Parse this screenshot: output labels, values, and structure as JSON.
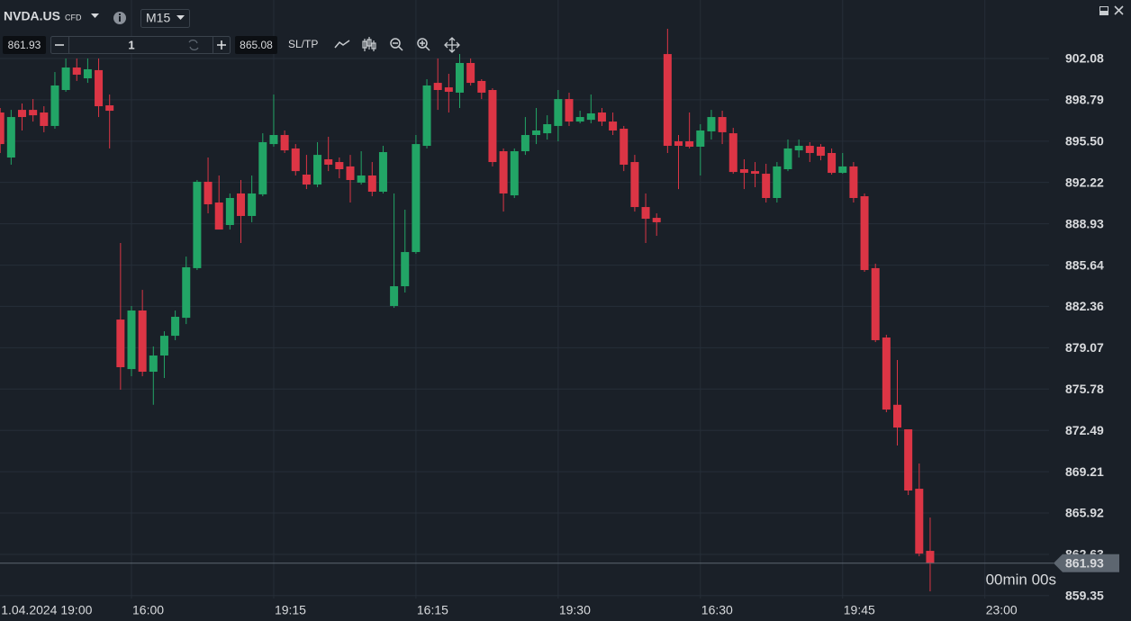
{
  "toolbar": {
    "symbol": "NVDA.US",
    "instrument_type": "CFD",
    "timeframe": "M15",
    "sell_price": 861.93,
    "volume": 1,
    "buy_price": 865.08,
    "sltp": "SL/TP"
  },
  "chart_data": {
    "type": "candlestick",
    "categories": [
      "1.04.2024 19:00",
      null,
      null,
      null,
      null,
      null,
      null,
      null,
      null,
      null,
      null,
      null,
      "16:00",
      null,
      null,
      null,
      null,
      null,
      null,
      null,
      null,
      null,
      null,
      null,
      null,
      "19:15",
      null,
      null,
      null,
      null,
      null,
      null,
      null,
      null,
      null,
      null,
      null,
      null,
      "16:15",
      null,
      null,
      null,
      null,
      null,
      null,
      null,
      null,
      null,
      null,
      null,
      null,
      "19:30",
      null,
      null,
      null,
      null,
      null,
      null,
      null,
      null,
      null,
      null,
      null,
      null,
      "16:30",
      null,
      null,
      null,
      null,
      null,
      null,
      null,
      null,
      null,
      null,
      null,
      null,
      "19:45",
      null,
      null,
      null,
      null,
      null,
      null,
      null,
      null,
      null,
      null,
      null,
      null,
      "23:00",
      null,
      null,
      null,
      null,
      null
    ],
    "open": [
      897.78,
      894.2,
      897.99,
      897.99,
      897.78,
      896.71,
      899.57,
      901.36,
      900.5,
      901.15,
      898.35,
      881.31,
      877.37,
      882.03,
      877.16,
      878.45,
      880.02,
      881.45,
      885.4,
      892.27,
      890.62,
      888.83,
      891.34,
      889.55,
      891.27,
      895.27,
      895.99,
      894.92,
      892.84,
      892.05,
      894.06,
      893.84,
      893.49,
      892.2,
      892.77,
      891.48,
      882.39,
      883.96,
      886.68,
      895.13,
      900.14,
      899.78,
      899.36,
      901.72,
      900.29,
      899.57,
      894.7,
      891.19,
      894.7,
      895.99,
      896.13,
      896.71,
      898.85,
      897.06,
      897.2,
      897.78,
      897.06,
      896.49,
      893.84,
      890.26,
      889.4,
      902.43,
      895.49,
      895.49,
      895.06,
      896.28,
      897.42,
      896.13,
      893.27,
      893.12,
      892.91,
      890.98,
      893.27,
      894.77,
      895.13,
      895.06,
      894.56,
      892.98,
      893.49,
      891.12,
      885.4,
      879.88,
      874.53,
      872.58,
      867.85,
      862.91,
      null,
      null,
      null,
      null,
      null,
      null,
      null,
      null,
      null,
      null
    ],
    "high": [
      898.14,
      897.99,
      898.5,
      898.85,
      898.28,
      901.0,
      902.08,
      902.08,
      902.08,
      902.08,
      899.21,
      887.4,
      882.39,
      883.67,
      879.17,
      880.38,
      882.03,
      886.32,
      892.41,
      894.2,
      892.77,
      891.34,
      892.41,
      892.77,
      896.13,
      899.21,
      896.35,
      895.27,
      894.41,
      895.42,
      895.85,
      894.2,
      894.41,
      894.7,
      893.84,
      895.13,
      891.34,
      890.05,
      895.99,
      900.43,
      902.08,
      900.86,
      902.43,
      902.08,
      900.43,
      899.71,
      894.92,
      894.92,
      897.42,
      898.14,
      897.56,
      899.57,
      899.36,
      897.92,
      899.21,
      898.14,
      897.78,
      896.71,
      894.41,
      891.34,
      889.76,
      904.44,
      895.99,
      897.78,
      896.85,
      897.99,
      897.92,
      896.56,
      894.06,
      893.84,
      893.7,
      893.84,
      895.63,
      895.63,
      895.42,
      895.27,
      894.92,
      894.56,
      893.84,
      891.34,
      885.75,
      880.1,
      878.09,
      872.58,
      869.86,
      865.56,
      null,
      null,
      null,
      null,
      null,
      null,
      null,
      null,
      null,
      null
    ],
    "low": [
      894.56,
      893.63,
      896.35,
      897.06,
      896.21,
      896.49,
      899.43,
      900.29,
      900.14,
      897.42,
      894.92,
      875.73,
      876.8,
      876.8,
      874.53,
      876.66,
      879.67,
      880.95,
      885.25,
      889.76,
      888.47,
      888.47,
      887.4,
      889.05,
      891.12,
      895.06,
      894.56,
      892.77,
      891.69,
      891.84,
      893.12,
      892.55,
      890.62,
      892.05,
      891.12,
      891.34,
      882.24,
      883.46,
      886.54,
      894.92,
      897.99,
      897.78,
      898.14,
      899.93,
      898.85,
      893.49,
      889.9,
      890.98,
      894.41,
      895.27,
      895.63,
      895.49,
      896.71,
      896.92,
      896.92,
      896.71,
      895.99,
      893.12,
      889.9,
      887.4,
      887.97,
      894.56,
      891.69,
      894.92,
      892.77,
      895.63,
      895.27,
      892.91,
      891.69,
      891.84,
      890.62,
      890.62,
      893.12,
      894.2,
      893.84,
      893.98,
      892.84,
      892.91,
      890.62,
      885.11,
      879.52,
      873.94,
      871.29,
      867.35,
      862.48,
      859.69,
      null,
      null,
      null,
      null,
      null,
      null,
      null,
      null,
      null,
      null
    ],
    "close": [
      895.27,
      897.42,
      897.42,
      897.56,
      896.71,
      899.93,
      901.36,
      900.79,
      901.22,
      898.28,
      897.92,
      877.52,
      882.03,
      877.16,
      878.45,
      880.02,
      881.53,
      885.47,
      892.27,
      890.48,
      888.47,
      890.98,
      889.55,
      891.34,
      895.42,
      895.99,
      894.77,
      893.12,
      892.05,
      894.41,
      893.63,
      893.27,
      892.41,
      892.77,
      891.48,
      894.63,
      883.96,
      886.68,
      895.27,
      899.93,
      899.57,
      899.43,
      901.72,
      900.14,
      899.36,
      893.84,
      891.34,
      894.7,
      895.99,
      896.35,
      896.85,
      898.85,
      897.06,
      897.42,
      897.71,
      897.06,
      896.35,
      893.63,
      890.26,
      889.33,
      889.05,
      895.13,
      895.13,
      895.06,
      896.35,
      897.42,
      896.21,
      893.05,
      892.98,
      892.91,
      890.98,
      893.49,
      894.92,
      895.13,
      894.56,
      894.34,
      892.98,
      893.49,
      890.98,
      885.25,
      879.67,
      874.15,
      872.72,
      867.71,
      862.69,
      861.93,
      null,
      null,
      null,
      null,
      null,
      null,
      null,
      null,
      null,
      null
    ],
    "up_color": "#22a566",
    "down_color": "#dc3545",
    "ylim": [
      859.12,
      906.73
    ],
    "yticks": [
      {
        "value": 902.08,
        "label": "902.08"
      },
      {
        "value": 898.79,
        "label": "898.79"
      },
      {
        "value": 895.5,
        "label": "895.50"
      },
      {
        "value": 892.22,
        "label": "892.22"
      },
      {
        "value": 888.93,
        "label": "888.93"
      },
      {
        "value": 885.64,
        "label": "885.64"
      },
      {
        "value": 882.36,
        "label": "882.36"
      },
      {
        "value": 879.07,
        "label": "879.07"
      },
      {
        "value": 875.78,
        "label": "875.78"
      },
      {
        "value": 872.49,
        "label": "872.49"
      },
      {
        "value": 869.21,
        "label": "869.21"
      },
      {
        "value": 865.92,
        "label": "865.92"
      },
      {
        "value": 862.63,
        "label": "862.63"
      },
      {
        "value": 859.35,
        "label": "859.35"
      }
    ],
    "grid": true,
    "current_price": 861.93,
    "current_price_color": "#5d6670",
    "timer": "00min 00s",
    "timer_color": "#f0a020"
  }
}
